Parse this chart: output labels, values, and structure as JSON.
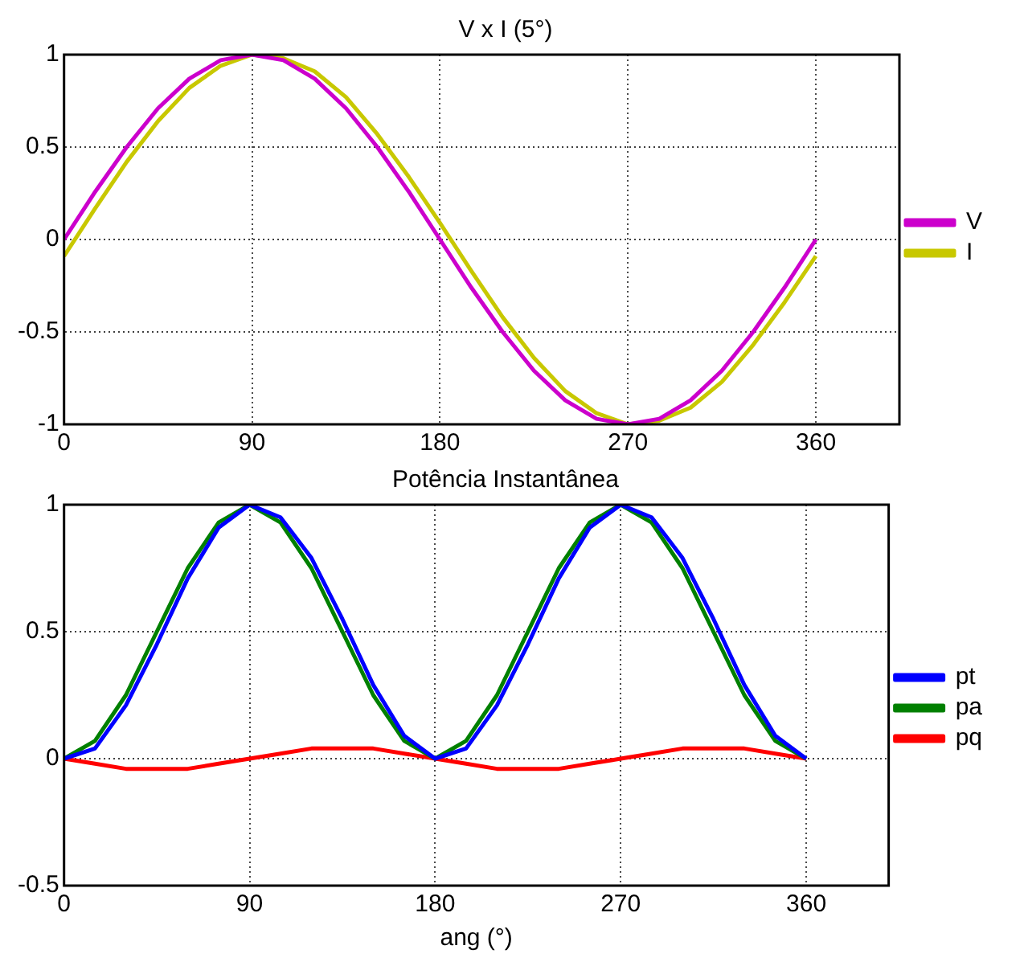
{
  "chart_data": [
    {
      "type": "line",
      "title": "V x I (5°)",
      "x": [
        0,
        15,
        30,
        45,
        60,
        75,
        90,
        105,
        120,
        135,
        150,
        165,
        180,
        195,
        210,
        225,
        240,
        255,
        270,
        285,
        300,
        315,
        330,
        345,
        360
      ],
      "series": [
        {
          "name": "V",
          "color": "#cc00cc",
          "values": [
            0,
            0.26,
            0.5,
            0.71,
            0.87,
            0.97,
            1,
            0.97,
            0.87,
            0.71,
            0.5,
            0.26,
            0,
            -0.26,
            -0.5,
            -0.71,
            -0.87,
            -0.97,
            -1,
            -0.97,
            -0.87,
            -0.71,
            -0.5,
            -0.26,
            0
          ]
        },
        {
          "name": "I",
          "color": "#c8c800",
          "values": [
            -0.09,
            0.17,
            0.42,
            0.64,
            0.82,
            0.94,
            1,
            0.98,
            0.91,
            0.77,
            0.57,
            0.34,
            0.09,
            -0.17,
            -0.42,
            -0.64,
            -0.82,
            -0.94,
            -1,
            -0.98,
            -0.91,
            -0.77,
            -0.57,
            -0.34,
            -0.09
          ]
        }
      ],
      "xlim": [
        0,
        400
      ],
      "xticks": [
        0,
        90,
        180,
        270,
        360
      ],
      "ylim": [
        -1,
        1
      ],
      "yticks": [
        -1,
        -0.5,
        0,
        0.5,
        1
      ],
      "grid": true,
      "legend": "right",
      "marker": "none",
      "line_style": "solid"
    },
    {
      "type": "line",
      "title": "Potência Instantânea",
      "xlabel": "ang (°)",
      "x": [
        0,
        15,
        30,
        45,
        60,
        75,
        90,
        105,
        120,
        135,
        150,
        165,
        180,
        195,
        210,
        225,
        240,
        255,
        270,
        285,
        300,
        315,
        330,
        345,
        360
      ],
      "series": [
        {
          "name": "pt",
          "color": "#0000ff",
          "values": [
            0,
            0.04,
            0.21,
            0.45,
            0.71,
            0.91,
            1,
            0.95,
            0.79,
            0.55,
            0.29,
            0.09,
            0,
            0.04,
            0.21,
            0.45,
            0.71,
            0.91,
            1,
            0.95,
            0.79,
            0.55,
            0.29,
            0.09,
            0
          ]
        },
        {
          "name": "pa",
          "color": "#008000",
          "values": [
            0,
            0.07,
            0.25,
            0.5,
            0.75,
            0.93,
            1,
            0.93,
            0.75,
            0.5,
            0.25,
            0.07,
            0,
            0.07,
            0.25,
            0.5,
            0.75,
            0.93,
            1,
            0.93,
            0.75,
            0.5,
            0.25,
            0.07,
            0
          ]
        },
        {
          "name": "pq",
          "color": "#ff0000",
          "values": [
            0,
            -0.02,
            -0.04,
            -0.04,
            -0.04,
            -0.02,
            0,
            0.02,
            0.04,
            0.04,
            0.04,
            0.02,
            0,
            -0.02,
            -0.04,
            -0.04,
            -0.04,
            -0.02,
            0,
            0.02,
            0.04,
            0.04,
            0.04,
            0.02,
            0
          ]
        }
      ],
      "xlim": [
        0,
        400
      ],
      "xticks": [
        0,
        90,
        180,
        270,
        360
      ],
      "ylim": [
        -0.5,
        1
      ],
      "yticks": [
        -0.5,
        0,
        0.5,
        1
      ],
      "grid": true,
      "legend": "right",
      "marker": "none",
      "line_style": "solid"
    }
  ]
}
